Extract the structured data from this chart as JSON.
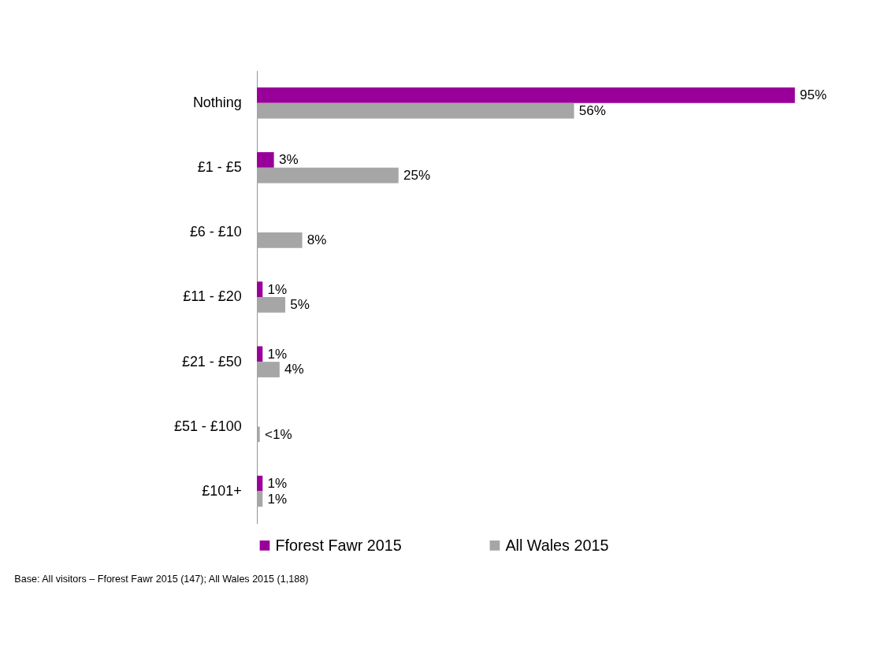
{
  "chart_data": {
    "type": "bar",
    "orientation": "horizontal",
    "categories": [
      "Nothing",
      "£1 - £5",
      "£6 - £10",
      "£11 - £20",
      "£21 - £50",
      "£51 - £100",
      "£101+"
    ],
    "series": [
      {
        "name": "Fforest Fawr 2015",
        "color": "#990099",
        "values": [
          95,
          3,
          null,
          1,
          1,
          null,
          1
        ],
        "value_labels": [
          "95%",
          "3%",
          null,
          "1%",
          "1%",
          null,
          "1%"
        ]
      },
      {
        "name": "All Wales 2015",
        "color": "#a6a6a6",
        "values": [
          56,
          25,
          8,
          5,
          4,
          0.5,
          1
        ],
        "value_labels": [
          "56%",
          "25%",
          "8%",
          "5%",
          "4%",
          "<1%",
          "1%"
        ]
      }
    ],
    "legend": "bottom",
    "tick_labels": "y",
    "annotations": [
      "Base: All visitors – Fforest Fawr 2015 (147); All Wales 2015 (1,188)"
    ]
  }
}
